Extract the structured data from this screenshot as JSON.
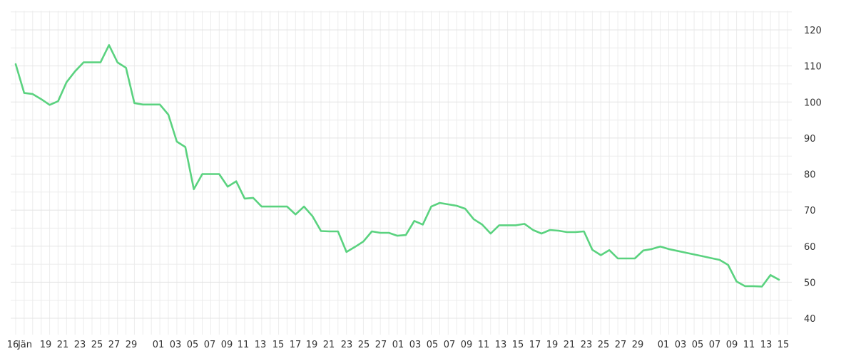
{
  "chart_data": {
    "type": "line",
    "title": "",
    "xlabel": "",
    "ylabel": "",
    "ylim": [
      35,
      125
    ],
    "y_ticks": [
      40,
      50,
      60,
      70,
      80,
      90,
      100,
      110,
      120
    ],
    "y_axis_side": "right",
    "grid": true,
    "line_color": "#5ad27f",
    "x_tick_labels": [
      "16",
      "Jän",
      "19",
      "21",
      "23",
      "25",
      "27",
      "29",
      "01",
      "03",
      "05",
      "07",
      "09",
      "11",
      "13",
      "15",
      "17",
      "19",
      "21",
      "23",
      "25",
      "27",
      "01",
      "03",
      "05",
      "07",
      "09",
      "11",
      "13",
      "15",
      "17",
      "19",
      "21",
      "23",
      "25",
      "27",
      "29",
      "01",
      "03",
      "05",
      "07",
      "09",
      "11",
      "13",
      "15"
    ],
    "series": [
      {
        "values": [
          110.5,
          102.5,
          102.2,
          100.8,
          99.2,
          100.2,
          105.5,
          108.5,
          111.0,
          111.0,
          111.0,
          115.8,
          111.0,
          109.5,
          99.7,
          99.3,
          99.3,
          99.3,
          96.5,
          89.0,
          87.5,
          75.8,
          80.0,
          80.0,
          80.0,
          76.5,
          78.0,
          73.2,
          73.4,
          71.0,
          71.0,
          71.0,
          71.0,
          68.8,
          71.0,
          68.3,
          64.2,
          64.1,
          64.1,
          58.4,
          59.8,
          61.3,
          64.1,
          63.7,
          63.7,
          62.9,
          63.1,
          67.0,
          66.0,
          71.0,
          72.0,
          71.6,
          71.2,
          70.4,
          67.5,
          66.0,
          63.5,
          65.8,
          65.8,
          65.8,
          66.2,
          64.5,
          63.5,
          64.5,
          64.3,
          63.9,
          63.9,
          64.1,
          59.0,
          57.5,
          58.9,
          56.6,
          56.6,
          56.6,
          58.8,
          59.2,
          59.9,
          59.2,
          58.7,
          58.2,
          57.7,
          57.2,
          56.7,
          56.2,
          54.8,
          50.2,
          48.9,
          48.9,
          48.8,
          52.0,
          50.7
        ]
      }
    ]
  }
}
